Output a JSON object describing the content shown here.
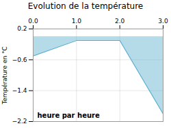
{
  "chart_data": {
    "type": "area",
    "title": "Evolution de la température",
    "xlabel": "heure par heure",
    "ylabel": "Température en °C",
    "x": [
      0,
      1,
      2,
      3
    ],
    "values": [
      -0.5,
      -0.1,
      -0.1,
      -2.0
    ],
    "color": "#5aafcf",
    "xlim": [
      0,
      3
    ],
    "xticks": [
      0,
      1,
      2,
      3
    ],
    "ylim": [
      -2.2,
      0.2
    ],
    "yticks": [
      0.2,
      -0.6,
      -1.4,
      -2.2
    ],
    "grid": true
  }
}
